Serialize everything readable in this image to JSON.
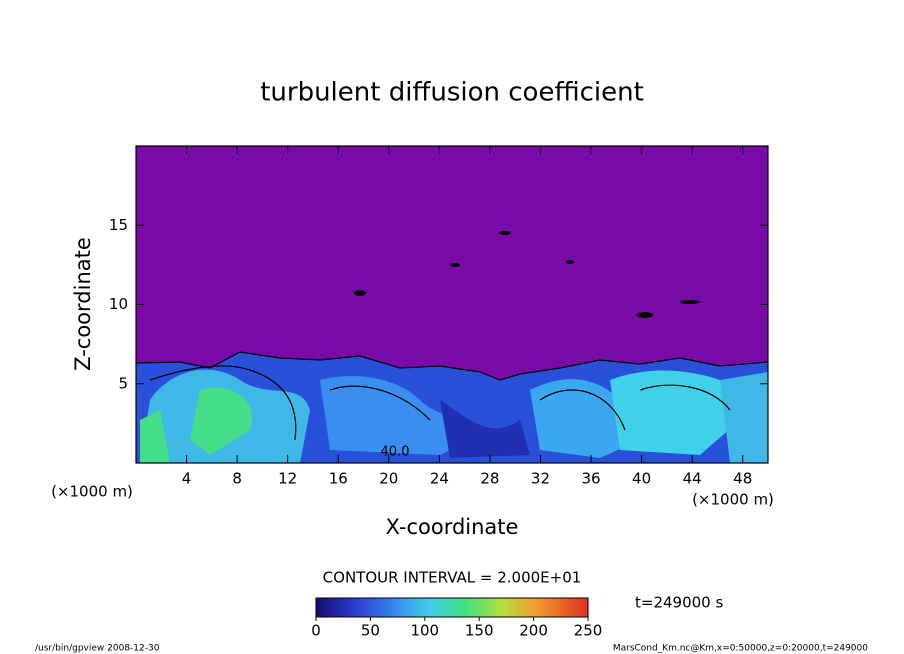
{
  "chart_data": {
    "type": "contour",
    "title": "turbulent diffusion coefficient",
    "x_label": "X-coordinate",
    "y_label": "Z-coordinate",
    "x_unit": "(×1000 m)",
    "y_unit": "(×1000 m)",
    "xlim": [
      0,
      50
    ],
    "xticks": [
      4,
      8,
      12,
      16,
      20,
      24,
      28,
      32,
      36,
      40,
      44,
      48
    ],
    "ylim": [
      0,
      20
    ],
    "yticks": [
      5,
      10,
      15
    ],
    "contour_interval": "CONTOUR INTERVAL = 2.000E+01",
    "contour_label": "40.0",
    "time_label": "t=249000 s",
    "clim": [
      0,
      250
    ],
    "cticks": [
      0,
      50,
      100,
      150,
      200,
      250
    ],
    "footer_left": "/usr/bin/gpview  2008-12-30",
    "footer_right": "MarsCond_Km.nc@Km,x=0:50000,z=0:20000,t=249000"
  }
}
